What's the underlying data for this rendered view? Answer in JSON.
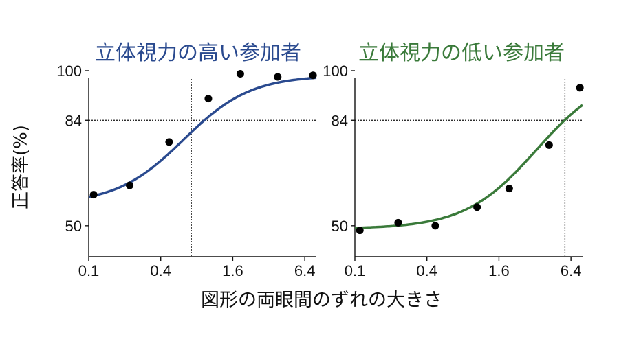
{
  "xlabel": "図形の両眼間のずれの大きさ",
  "ylabel": "正答率(%)",
  "chart_data": [
    {
      "type": "line",
      "title": "立体視力の高い参加者",
      "color": "#2a4a8f",
      "x_scale": "log2",
      "xlim": [
        0.1,
        8.0
      ],
      "ylim": [
        40,
        100
      ],
      "x_ticks": [
        0.1,
        0.4,
        1.6,
        6.4
      ],
      "x_tick_labels": [
        "0.1",
        "0.4",
        "1.6",
        "6.4"
      ],
      "y_ticks": [
        50,
        84,
        100
      ],
      "y_tick_labels": [
        "50",
        "84",
        "100"
      ],
      "threshold_y": 84,
      "threshold_x": 0.72,
      "points": [
        {
          "x": 0.11,
          "y": 60
        },
        {
          "x": 0.22,
          "y": 63
        },
        {
          "x": 0.47,
          "y": 77
        },
        {
          "x": 1.0,
          "y": 91
        },
        {
          "x": 1.85,
          "y": 99
        },
        {
          "x": 3.8,
          "y": 98
        },
        {
          "x": 7.5,
          "y": 98.5
        }
      ],
      "curve": {
        "low": 57,
        "high": 98.5,
        "mid": 0.62,
        "slope": 1.55
      }
    },
    {
      "type": "line",
      "title": "立体視力の低い参加者",
      "color": "#3a7a3a",
      "x_scale": "log2",
      "xlim": [
        0.1,
        8.0
      ],
      "ylim": [
        40,
        100
      ],
      "x_ticks": [
        0.1,
        0.4,
        1.6,
        6.4
      ],
      "x_tick_labels": [
        "0.1",
        "0.4",
        "1.6",
        "6.4"
      ],
      "y_ticks": [
        50,
        84,
        100
      ],
      "y_tick_labels": [
        "50",
        "84",
        "100"
      ],
      "threshold_y": 84,
      "threshold_x": 5.7,
      "points": [
        {
          "x": 0.11,
          "y": 48.5
        },
        {
          "x": 0.23,
          "y": 51
        },
        {
          "x": 0.47,
          "y": 50
        },
        {
          "x": 1.05,
          "y": 56
        },
        {
          "x": 1.95,
          "y": 62
        },
        {
          "x": 4.2,
          "y": 76
        },
        {
          "x": 7.6,
          "y": 94.5
        }
      ],
      "curve": {
        "low": 49,
        "high": 100,
        "mid": 3.3,
        "slope": 1.45
      }
    }
  ]
}
